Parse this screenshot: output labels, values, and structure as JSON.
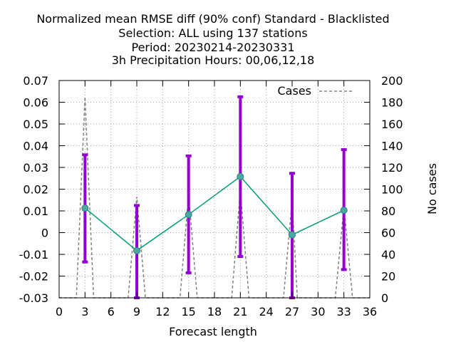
{
  "chart_data": {
    "type": "line",
    "title": [
      "Normalized mean RMSE diff (90% conf) Standard - Blacklisted",
      "Selection: ALL using   137 stations",
      "Period: 20230214-20230331",
      "3h Precipitation   Hours:  00,06,12,18"
    ],
    "xlabel": "Forecast length",
    "ylabel": "",
    "y2label": "No cases",
    "xlim": [
      0,
      36
    ],
    "ylim": [
      -0.03,
      0.07
    ],
    "y2lim": [
      0,
      200
    ],
    "x_ticks": [
      0,
      3,
      6,
      9,
      12,
      15,
      18,
      21,
      24,
      27,
      30,
      33,
      36
    ],
    "y_ticks": [
      -0.03,
      -0.02,
      -0.01,
      0,
      0.01,
      0.02,
      0.03,
      0.04,
      0.05,
      0.06,
      0.07
    ],
    "y_tick_labels": [
      "-0.03",
      "-0.02",
      "-0.01",
      "0",
      "0.01",
      "0.02",
      "0.03",
      "0.04",
      "0.05",
      "0.06",
      "0.07"
    ],
    "y2_ticks": [
      0,
      20,
      40,
      60,
      80,
      100,
      120,
      140,
      160,
      180,
      200
    ],
    "grid": true,
    "legend_position": "top-right",
    "series": [
      {
        "name": "",
        "kind": "line_with_errorbars",
        "color": "#009e73",
        "marker_color": "#4aa7a4",
        "errorbar_color": "#9400d3",
        "x": [
          3,
          9,
          15,
          21,
          27,
          33
        ],
        "y": [
          0.0113,
          -0.0083,
          0.0083,
          0.0258,
          -0.001,
          0.0103
        ],
        "y_low": [
          -0.0135,
          -0.03,
          -0.0185,
          -0.011,
          -0.03,
          -0.017
        ],
        "y_high": [
          0.0358,
          0.0125,
          0.0353,
          0.0625,
          0.0273,
          0.0382
        ]
      },
      {
        "name": "Cases",
        "kind": "dashed_line",
        "axis": "y2",
        "color": "#808080",
        "x": [
          0,
          2,
          3,
          4,
          8,
          9,
          10,
          14,
          15,
          16,
          20,
          21,
          22,
          26,
          27,
          27.6,
          28,
          32,
          33,
          34,
          36
        ],
        "y": [
          0,
          0,
          185,
          0,
          0,
          93,
          0,
          0,
          95,
          0,
          0,
          99,
          0,
          0,
          90,
          0,
          0,
          0,
          84,
          0,
          0
        ]
      }
    ]
  }
}
